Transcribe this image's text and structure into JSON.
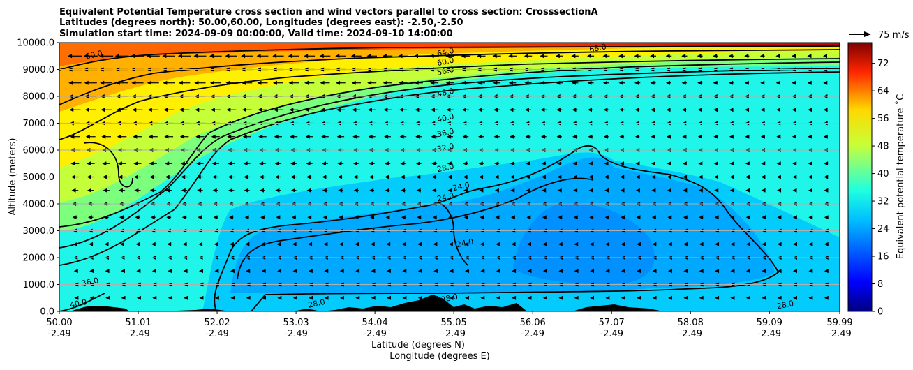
{
  "title": {
    "line1": "Equivalent Potential Temperature cross section and wind vectors parallel to cross section: CrosssectionA",
    "line2": "Latitudes (degrees north): 50.00,60.00, Longitudes (degrees east): -2.50,-2.50",
    "line3": "Simulation start time: 2024-09-09 00:00:00, Valid time: 2024-09-10 14:00:00"
  },
  "quiver_key": {
    "label": "75 m/s"
  },
  "colorbar": {
    "label": "Equivalent potential temperature ˚C",
    "ticks": [
      "0",
      "8",
      "16",
      "24",
      "32",
      "40",
      "48",
      "56",
      "64",
      "72"
    ],
    "range": [
      0,
      78
    ],
    "colormap": "jet"
  },
  "chart_data": {
    "type": "heatmap",
    "variable": "Equivalent potential temperature",
    "unit": "˚C",
    "xlabel": "Latitude (degrees N)",
    "xlabel2": "Longitude (degrees E)",
    "ylabel": "Altitude (meters)",
    "xlim": [
      50.0,
      59.99
    ],
    "ylim": [
      0,
      10000
    ],
    "grid": "horizontal",
    "x_ticks": [
      {
        "lat": "50.00",
        "lon": "-2.49",
        "v": 50.0
      },
      {
        "lat": "51.01",
        "lon": "-2.49",
        "v": 51.01
      },
      {
        "lat": "52.02",
        "lon": "-2.49",
        "v": 52.02
      },
      {
        "lat": "53.03",
        "lon": "-2.49",
        "v": 53.03
      },
      {
        "lat": "54.04",
        "lon": "-2.49",
        "v": 54.04
      },
      {
        "lat": "55.05",
        "lon": "-2.49",
        "v": 55.05
      },
      {
        "lat": "56.06",
        "lon": "-2.49",
        "v": 56.06
      },
      {
        "lat": "57.07",
        "lon": "-2.49",
        "v": 57.07
      },
      {
        "lat": "58.08",
        "lon": "-2.49",
        "v": 58.08
      },
      {
        "lat": "59.09",
        "lon": "-2.49",
        "v": 59.09
      },
      {
        "lat": "59.99",
        "lon": "-2.49",
        "v": 59.99
      }
    ],
    "y_ticks": [
      {
        "label": "0.0",
        "v": 0
      },
      {
        "label": "1000.0",
        "v": 1000
      },
      {
        "label": "2000.0",
        "v": 2000
      },
      {
        "label": "3000.0",
        "v": 3000
      },
      {
        "label": "4000.0",
        "v": 4000
      },
      {
        "label": "5000.0",
        "v": 5000
      },
      {
        "label": "6000.0",
        "v": 6000
      },
      {
        "label": "7000.0",
        "v": 7000
      },
      {
        "label": "8000.0",
        "v": 8000
      },
      {
        "label": "9000.0",
        "v": 9000
      },
      {
        "label": "10000.0",
        "v": 10000
      }
    ],
    "contour_labels": [
      {
        "text": "64.0",
        "lat": 54.95,
        "alt": 9550
      },
      {
        "text": "60.0",
        "lat": 54.95,
        "alt": 9200
      },
      {
        "text": "56.0",
        "lat": 54.95,
        "alt": 8850
      },
      {
        "text": "48.0",
        "lat": 54.95,
        "alt": 8050
      },
      {
        "text": "40.0",
        "lat": 54.95,
        "alt": 7100
      },
      {
        "text": "36.0",
        "lat": 54.95,
        "alt": 6550
      },
      {
        "text": "32.0",
        "lat": 54.95,
        "alt": 6000
      },
      {
        "text": "28.0",
        "lat": 54.95,
        "alt": 5250
      },
      {
        "text": "24.0",
        "lat": 55.15,
        "alt": 4550
      },
      {
        "text": "24.0",
        "lat": 54.95,
        "alt": 4150
      },
      {
        "text": "24.0",
        "lat": 55.2,
        "alt": 2450
      },
      {
        "text": "68.0",
        "lat": 56.9,
        "alt": 9700
      },
      {
        "text": "60.0",
        "lat": 50.45,
        "alt": 9450
      },
      {
        "text": "36.0",
        "lat": 50.4,
        "alt": 1000
      },
      {
        "text": "40.0",
        "lat": 50.25,
        "alt": 200
      },
      {
        "text": "28.0",
        "lat": 53.3,
        "alt": 200
      },
      {
        "text": "28.0",
        "lat": 55.0,
        "alt": 400
      },
      {
        "text": "28.0",
        "lat": 59.3,
        "alt": 150
      }
    ],
    "terrain_peaks": [
      {
        "lat": 50.6,
        "alt": 150
      },
      {
        "lat": 51.7,
        "alt": 120
      },
      {
        "lat": 52.6,
        "alt": 90
      },
      {
        "lat": 54.2,
        "alt": 210
      },
      {
        "lat": 54.75,
        "alt": 330
      },
      {
        "lat": 55.1,
        "alt": 200
      },
      {
        "lat": 56.5,
        "alt": 300
      },
      {
        "lat": 57.05,
        "alt": 260
      },
      {
        "lat": 57.4,
        "alt": 150
      }
    ],
    "wind_vectors_note": "Northerly flow aloft; wind speed decreases from north to south and with lower altitude; reference vector 75 m/s"
  }
}
